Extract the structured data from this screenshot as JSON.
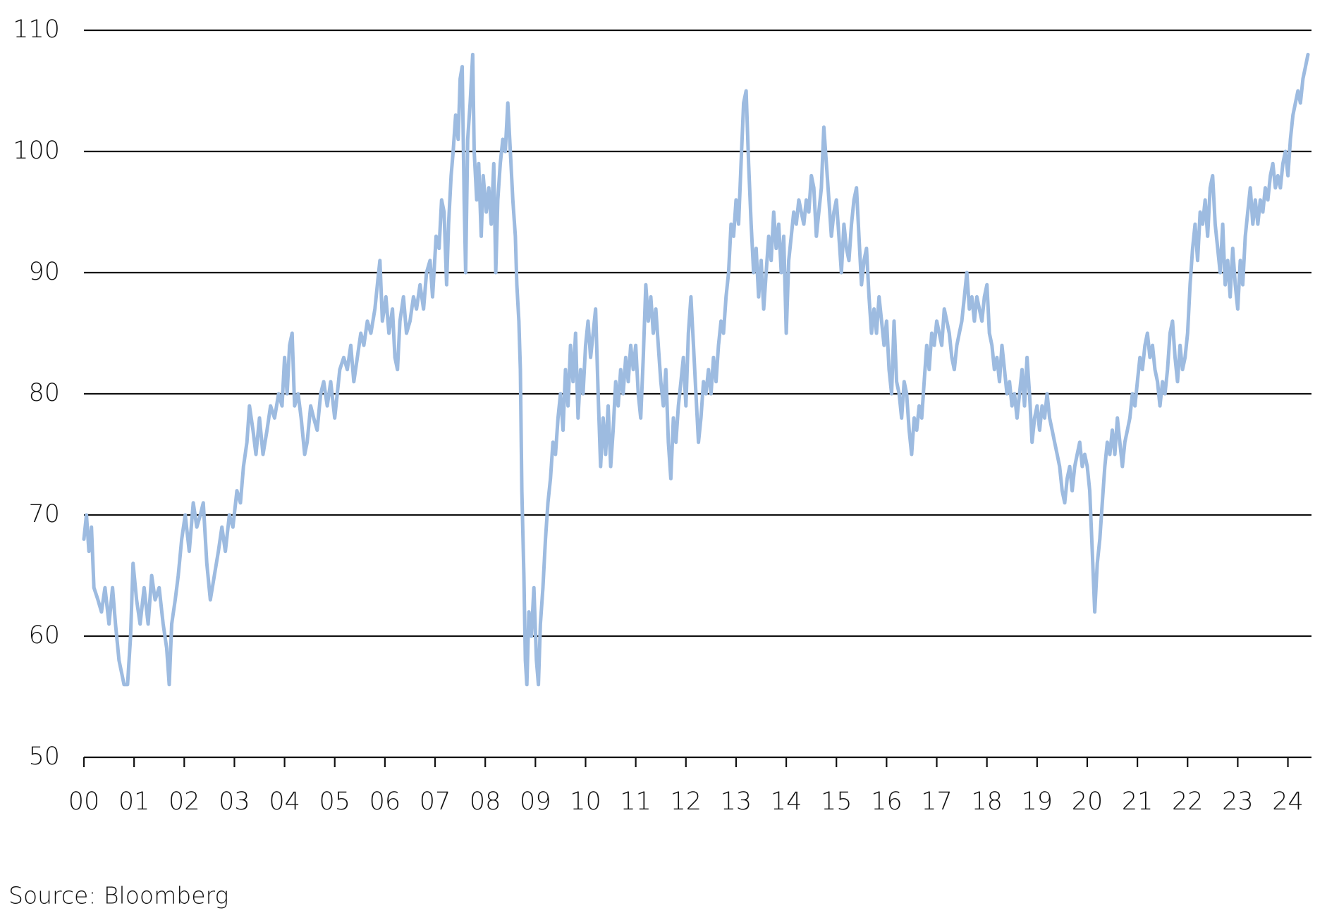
{
  "chart_data": {
    "type": "line",
    "source": "Source: Bloomberg",
    "color": "#9dbbe0",
    "grid": true,
    "xlim": [
      2000,
      2024.47
    ],
    "ylim": [
      50,
      110
    ],
    "yticks": [
      50,
      60,
      70,
      80,
      90,
      100,
      110
    ],
    "xticks": [
      {
        "value": 2000,
        "label": "00"
      },
      {
        "value": 2001,
        "label": "01"
      },
      {
        "value": 2002,
        "label": "02"
      },
      {
        "value": 2003,
        "label": "03"
      },
      {
        "value": 2004,
        "label": "04"
      },
      {
        "value": 2005,
        "label": "05"
      },
      {
        "value": 2006,
        "label": "06"
      },
      {
        "value": 2007,
        "label": "07"
      },
      {
        "value": 2008,
        "label": "08"
      },
      {
        "value": 2009,
        "label": "09"
      },
      {
        "value": 2010,
        "label": "10"
      },
      {
        "value": 2011,
        "label": "11"
      },
      {
        "value": 2012,
        "label": "12"
      },
      {
        "value": 2013,
        "label": "13"
      },
      {
        "value": 2014,
        "label": "14"
      },
      {
        "value": 2015,
        "label": "15"
      },
      {
        "value": 2016,
        "label": "16"
      },
      {
        "value": 2017,
        "label": "17"
      },
      {
        "value": 2018,
        "label": "18"
      },
      {
        "value": 2019,
        "label": "19"
      },
      {
        "value": 2020,
        "label": "20"
      },
      {
        "value": 2021,
        "label": "21"
      },
      {
        "value": 2022,
        "label": "22"
      },
      {
        "value": 2023,
        "label": "23"
      },
      {
        "value": 2024,
        "label": "24"
      }
    ],
    "x": [
      2000.0,
      2000.05,
      2000.1,
      2000.15,
      2000.2,
      2000.28,
      2000.35,
      2000.42,
      2000.5,
      2000.57,
      2000.63,
      2000.7,
      2000.75,
      2000.8,
      2000.87,
      2000.93,
      2000.98,
      2001.05,
      2001.12,
      2001.2,
      2001.28,
      2001.35,
      2001.42,
      2001.5,
      2001.58,
      2001.65,
      2001.7,
      2001.75,
      2001.82,
      2001.88,
      2001.95,
      2002.02,
      2002.1,
      2002.18,
      2002.25,
      2002.32,
      2002.38,
      2002.45,
      2002.52,
      2002.6,
      2002.68,
      2002.75,
      2002.82,
      2002.9,
      2002.97,
      2003.05,
      2003.12,
      2003.18,
      2003.25,
      2003.3,
      2003.37,
      2003.43,
      2003.5,
      2003.57,
      2003.65,
      2003.72,
      2003.8,
      2003.88,
      2003.95,
      2004.0,
      2004.05,
      2004.1,
      2004.15,
      2004.2,
      2004.27,
      2004.33,
      2004.4,
      2004.45,
      2004.52,
      2004.58,
      2004.65,
      2004.72,
      2004.78,
      2004.85,
      2004.92,
      2005.0,
      2005.05,
      2005.1,
      2005.18,
      2005.25,
      2005.32,
      2005.38,
      2005.45,
      2005.52,
      2005.58,
      2005.65,
      2005.72,
      2005.8,
      2005.85,
      2005.9,
      2005.95,
      2006.02,
      2006.08,
      2006.15,
      2006.2,
      2006.25,
      2006.3,
      2006.37,
      2006.43,
      2006.5,
      2006.57,
      2006.63,
      2006.7,
      2006.77,
      2006.83,
      2006.9,
      2006.95,
      2007.02,
      2007.08,
      2007.13,
      2007.18,
      2007.23,
      2007.27,
      2007.32,
      2007.36,
      2007.41,
      2007.46,
      2007.5,
      2007.54,
      2007.58,
      2007.61,
      2007.65,
      2007.7,
      2007.75,
      2007.78,
      2007.83,
      2007.87,
      2007.92,
      2007.96,
      2008.02,
      2008.07,
      2008.12,
      2008.17,
      2008.21,
      2008.25,
      2008.3,
      2008.35,
      2008.4,
      2008.45,
      2008.5,
      2008.55,
      2008.6,
      2008.63,
      2008.67,
      2008.7,
      2008.73,
      2008.77,
      2008.8,
      2008.83,
      2008.87,
      2008.92,
      2008.97,
      2009.02,
      2009.06,
      2009.1,
      2009.15,
      2009.2,
      2009.25,
      2009.3,
      2009.35,
      2009.4,
      2009.45,
      2009.5,
      2009.55,
      2009.6,
      2009.65,
      2009.7,
      2009.75,
      2009.8,
      2009.85,
      2009.9,
      2009.95,
      2010.0,
      2010.05,
      2010.1,
      2010.15,
      2010.2,
      2010.25,
      2010.3,
      2010.35,
      2010.4,
      2010.45,
      2010.5,
      2010.55,
      2010.6,
      2010.65,
      2010.7,
      2010.75,
      2010.8,
      2010.85,
      2010.9,
      2010.95,
      2011.0,
      2011.05,
      2011.1,
      2011.15,
      2011.2,
      2011.25,
      2011.3,
      2011.35,
      2011.4,
      2011.45,
      2011.5,
      2011.55,
      2011.6,
      2011.65,
      2011.7,
      2011.75,
      2011.8,
      2011.85,
      2011.9,
      2011.95,
      2012.0,
      2012.05,
      2012.1,
      2012.15,
      2012.2,
      2012.25,
      2012.3,
      2012.35,
      2012.4,
      2012.45,
      2012.5,
      2012.55,
      2012.6,
      2012.65,
      2012.7,
      2012.75,
      2012.8,
      2012.85,
      2012.9,
      2012.95,
      2013.0,
      2013.05,
      2013.1,
      2013.15,
      2013.2,
      2013.25,
      2013.3,
      2013.35,
      2013.4,
      2013.45,
      2013.5,
      2013.55,
      2013.6,
      2013.65,
      2013.7,
      2013.75,
      2013.8,
      2013.85,
      2013.9,
      2013.95,
      2014.0,
      2014.05,
      2014.1,
      2014.15,
      2014.2,
      2014.25,
      2014.3,
      2014.35,
      2014.4,
      2014.45,
      2014.5,
      2014.55,
      2014.6,
      2014.65,
      2014.7,
      2014.75,
      2014.8,
      2014.85,
      2014.9,
      2014.95,
      2015.0,
      2015.05,
      2015.1,
      2015.15,
      2015.2,
      2015.25,
      2015.3,
      2015.35,
      2015.4,
      2015.45,
      2015.5,
      2015.55,
      2015.6,
      2015.65,
      2015.7,
      2015.75,
      2015.8,
      2015.85,
      2015.9,
      2015.95,
      2016.0,
      2016.05,
      2016.1,
      2016.15,
      2016.2,
      2016.25,
      2016.3,
      2016.35,
      2016.4,
      2016.45,
      2016.5,
      2016.55,
      2016.6,
      2016.65,
      2016.7,
      2016.75,
      2016.8,
      2016.85,
      2016.9,
      2016.95,
      2017.0,
      2017.05,
      2017.1,
      2017.15,
      2017.2,
      2017.25,
      2017.3,
      2017.35,
      2017.4,
      2017.45,
      2017.5,
      2017.55,
      2017.6,
      2017.65,
      2017.7,
      2017.75,
      2017.8,
      2017.85,
      2017.9,
      2017.95,
      2018.0,
      2018.05,
      2018.1,
      2018.15,
      2018.2,
      2018.25,
      2018.3,
      2018.35,
      2018.4,
      2018.45,
      2018.5,
      2018.55,
      2018.6,
      2018.65,
      2018.7,
      2018.75,
      2018.8,
      2018.85,
      2018.9,
      2018.95,
      2019.0,
      2019.05,
      2019.1,
      2019.15,
      2019.2,
      2019.25,
      2019.3,
      2019.35,
      2019.4,
      2019.45,
      2019.5,
      2019.55,
      2019.6,
      2019.65,
      2019.7,
      2019.75,
      2019.8,
      2019.85,
      2019.9,
      2019.95,
      2020.0,
      2020.05,
      2020.1,
      2020.15,
      2020.2,
      2020.25,
      2020.3,
      2020.35,
      2020.4,
      2020.45,
      2020.5,
      2020.55,
      2020.6,
      2020.65,
      2020.7,
      2020.75,
      2020.8,
      2020.85,
      2020.9,
      2020.95,
      2021.0,
      2021.05,
      2021.1,
      2021.15,
      2021.2,
      2021.25,
      2021.3,
      2021.35,
      2021.4,
      2021.45,
      2021.5,
      2021.55,
      2021.6,
      2021.65,
      2021.7,
      2021.75,
      2021.8,
      2021.85,
      2021.9,
      2021.95,
      2022.0,
      2022.05,
      2022.1,
      2022.15,
      2022.2,
      2022.25,
      2022.3,
      2022.35,
      2022.4,
      2022.45,
      2022.5,
      2022.55,
      2022.6,
      2022.65,
      2022.7,
      2022.75,
      2022.8,
      2022.85,
      2022.9,
      2022.95,
      2023.0,
      2023.05,
      2023.1,
      2023.15,
      2023.2,
      2023.25,
      2023.3,
      2023.35,
      2023.4,
      2023.45,
      2023.5,
      2023.55,
      2023.6,
      2023.65,
      2023.7,
      2023.75,
      2023.8,
      2023.85,
      2023.9,
      2023.95,
      2024.0,
      2024.05,
      2024.1,
      2024.15,
      2024.2,
      2024.25,
      2024.3,
      2024.35,
      2024.4
    ],
    "values": [
      68,
      70,
      67,
      69,
      64,
      63,
      62,
      64,
      61,
      64,
      61,
      58,
      57,
      56,
      56,
      60,
      66,
      63,
      61,
      64,
      61,
      65,
      63,
      64,
      61,
      59,
      56,
      61,
      63,
      65,
      68,
      70,
      67,
      71,
      69,
      70,
      71,
      66,
      63,
      65,
      67,
      69,
      67,
      70,
      69,
      72,
      71,
      74,
      76,
      79,
      77,
      75,
      78,
      75,
      77,
      79,
      78,
      80,
      79,
      83,
      80,
      84,
      85,
      79,
      80,
      78,
      75,
      76,
      79,
      78,
      77,
      80,
      81,
      79,
      81,
      78,
      80,
      82,
      83,
      82,
      84,
      81,
      83,
      85,
      84,
      86,
      85,
      87,
      89,
      91,
      86,
      88,
      85,
      87,
      83,
      82,
      86,
      88,
      85,
      86,
      88,
      87,
      89,
      87,
      90,
      91,
      88,
      93,
      92,
      96,
      95,
      89,
      94,
      98,
      100,
      103,
      101,
      106,
      107,
      96,
      90,
      101,
      104,
      108,
      100,
      96,
      99,
      93,
      98,
      95,
      97,
      94,
      99,
      90,
      96,
      99,
      101,
      100,
      104,
      100,
      96,
      93,
      89,
      86,
      82,
      72,
      65,
      58,
      56,
      62,
      60,
      64,
      58,
      56,
      61,
      64,
      68,
      71,
      73,
      76,
      75,
      78,
      80,
      77,
      82,
      79,
      84,
      81,
      85,
      78,
      82,
      80,
      84,
      86,
      83,
      85,
      87,
      80,
      74,
      78,
      75,
      79,
      74,
      77,
      81,
      79,
      82,
      80,
      83,
      81,
      84,
      82,
      84,
      80,
      78,
      83,
      89,
      86,
      88,
      85,
      87,
      84,
      81,
      79,
      82,
      76,
      73,
      78,
      76,
      79,
      81,
      83,
      79,
      85,
      88,
      84,
      80,
      76,
      78,
      81,
      80,
      82,
      80,
      83,
      81,
      84,
      86,
      85,
      88,
      90,
      94,
      93,
      96,
      94,
      99,
      104,
      105,
      99,
      94,
      90,
      92,
      88,
      91,
      87,
      90,
      93,
      91,
      95,
      92,
      94,
      90,
      93,
      85,
      91,
      93,
      95,
      94,
      96,
      95,
      94,
      96,
      95,
      98,
      97,
      93,
      95,
      97,
      102,
      99,
      96,
      93,
      95,
      96,
      93,
      90,
      94,
      92,
      91,
      94,
      96,
      97,
      93,
      89,
      91,
      92,
      88,
      85,
      87,
      85,
      88,
      86,
      84,
      86,
      82,
      80,
      86,
      81,
      80,
      78,
      81,
      80,
      77,
      75,
      78,
      77,
      79,
      78,
      81,
      84,
      82,
      85,
      84,
      86,
      85,
      84,
      87,
      86,
      85,
      83,
      82,
      84,
      85,
      86,
      88,
      90,
      87,
      88,
      86,
      88,
      87,
      86,
      88,
      89,
      85,
      84,
      82,
      83,
      81,
      84,
      82,
      80,
      81,
      79,
      80,
      78,
      80,
      82,
      79,
      83,
      80,
      76,
      78,
      79,
      77,
      79,
      78,
      80,
      78,
      77,
      76,
      75,
      74,
      72,
      71,
      73,
      74,
      72,
      74,
      75,
      76,
      74,
      75,
      74,
      72,
      67,
      62,
      66,
      68,
      71,
      74,
      76,
      75,
      77,
      75,
      78,
      76,
      74,
      76,
      77,
      78,
      80,
      79,
      81,
      83,
      82,
      84,
      85,
      83,
      84,
      82,
      81,
      79,
      81,
      80,
      82,
      85,
      86,
      83,
      81,
      84,
      82,
      83,
      85,
      89,
      92,
      94,
      91,
      95,
      94,
      96,
      93,
      97,
      98,
      94,
      92,
      90,
      94,
      89,
      91,
      88,
      92,
      89,
      87,
      91,
      89,
      93,
      95,
      97,
      94,
      96,
      94,
      96,
      95,
      97,
      96,
      98,
      99,
      97,
      98,
      97,
      99,
      100,
      98,
      101,
      103,
      104,
      105,
      104,
      106,
      107,
      108
    ]
  }
}
